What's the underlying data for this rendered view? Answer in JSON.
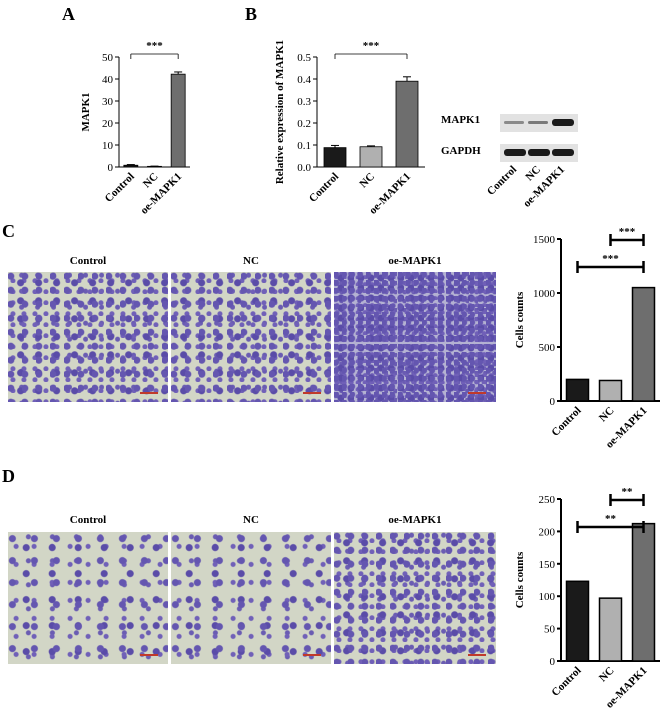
{
  "panels": {
    "A": "A",
    "B": "B",
    "C": "C",
    "D": "D"
  },
  "blot": {
    "bands": [
      "MAPK1",
      "GAPDH"
    ],
    "lanes": [
      "Control",
      "NC",
      "oe-MAPK1"
    ]
  },
  "images": {
    "C": [
      "Control",
      "NC",
      "oe-MAPK1"
    ],
    "D": [
      "Control",
      "NC",
      "oe-MAPK1"
    ]
  },
  "chart_data": [
    {
      "id": "A",
      "type": "bar",
      "categories": [
        "Control",
        "NC",
        "oe-MAPK1"
      ],
      "values": [
        0.8,
        0.3,
        42.2
      ],
      "errors": [
        0.3,
        0.1,
        1.0
      ],
      "ylabel": "MAPK1",
      "ylim": [
        0,
        50
      ],
      "yticks": [
        0,
        10,
        20,
        30,
        40,
        50
      ],
      "colors": [
        "#1a1a1a",
        "#b0b0b0",
        "#6e6e6e"
      ],
      "significance": [
        {
          "from": 0,
          "to": 2,
          "label": "***"
        }
      ]
    },
    {
      "id": "B",
      "type": "bar",
      "categories": [
        "Control",
        "NC",
        "oe-MAPK1"
      ],
      "values": [
        0.088,
        0.092,
        0.39
      ],
      "errors": [
        0.01,
        0.004,
        0.02
      ],
      "ylabel": "Relative expression of MAPK1",
      "ylim": [
        0,
        0.5
      ],
      "yticks": [
        0.0,
        0.1,
        0.2,
        0.3,
        0.4,
        0.5
      ],
      "ytick_labels": [
        "0.0",
        "0.1",
        "0.2",
        "0.3",
        "0.4",
        "0.5"
      ],
      "colors": [
        "#1a1a1a",
        "#b0b0b0",
        "#6e6e6e"
      ],
      "significance": [
        {
          "from": 0,
          "to": 2,
          "label": "***"
        }
      ]
    },
    {
      "id": "C",
      "type": "bar",
      "categories": [
        "Control",
        "NC",
        "oe-MAPK1"
      ],
      "values": [
        200,
        190,
        1050
      ],
      "ylabel": "Cells counts",
      "ylim": [
        0,
        1500
      ],
      "yticks": [
        0,
        500,
        1000,
        1500
      ],
      "colors": [
        "#1a1a1a",
        "#b0b0b0",
        "#6e6e6e"
      ],
      "significance": [
        {
          "from": 1,
          "to": 2,
          "label": "***"
        },
        {
          "from": 0,
          "to": 2,
          "label": "***"
        }
      ]
    },
    {
      "id": "D",
      "type": "bar",
      "categories": [
        "Control",
        "NC",
        "oe-MAPK1"
      ],
      "values": [
        123,
        97,
        212
      ],
      "ylabel": "Cells counts",
      "ylim": [
        0,
        250
      ],
      "yticks": [
        0,
        50,
        100,
        150,
        200,
        250
      ],
      "colors": [
        "#1a1a1a",
        "#b0b0b0",
        "#6e6e6e"
      ],
      "significance": [
        {
          "from": 1,
          "to": 2,
          "label": "**"
        },
        {
          "from": 0,
          "to": 2,
          "label": "**"
        }
      ]
    }
  ]
}
